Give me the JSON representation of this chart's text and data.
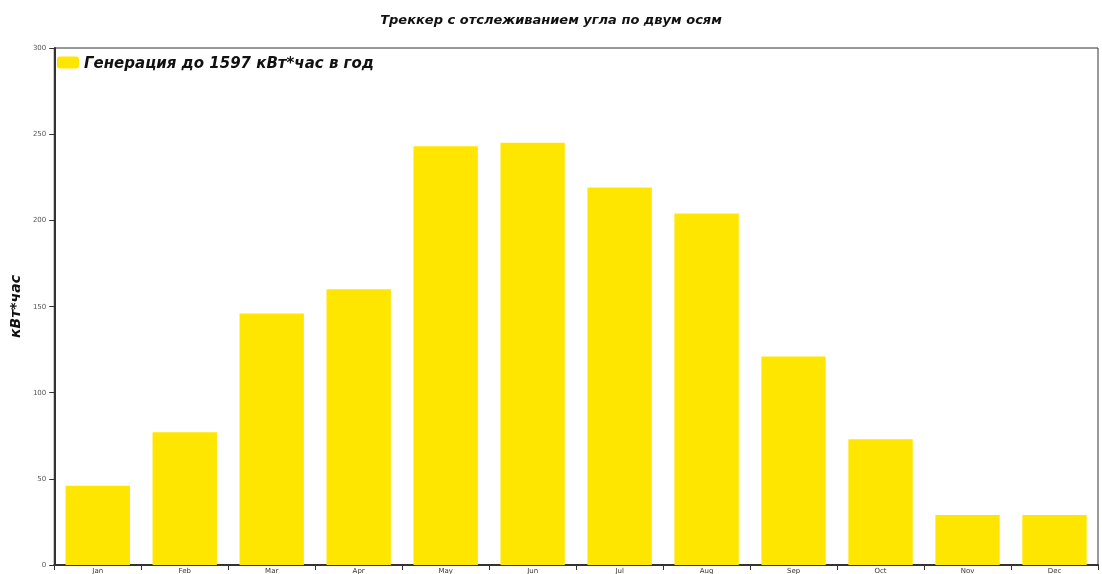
{
  "chart_data": {
    "type": "bar",
    "title": "Треккер с отслеживанием угла по двум осям",
    "ylabel": "кВт*час",
    "categories": [
      "Jan",
      "Feb",
      "Mar",
      "Apr",
      "May",
      "Jun",
      "Jul",
      "Aug",
      "Sep",
      "Oct",
      "Nov",
      "Dec"
    ],
    "series": [
      {
        "name": "Генерация до 1597 кВт*час в год",
        "color": "#ffe600",
        "values": [
          46,
          77,
          146,
          160,
          243,
          245,
          219,
          204,
          121,
          73,
          29,
          29
        ]
      }
    ],
    "ylim": [
      0,
      300
    ],
    "yticks": [
      0,
      50,
      100,
      150,
      200,
      250,
      300
    ],
    "grid": false,
    "legend": "top left"
  }
}
